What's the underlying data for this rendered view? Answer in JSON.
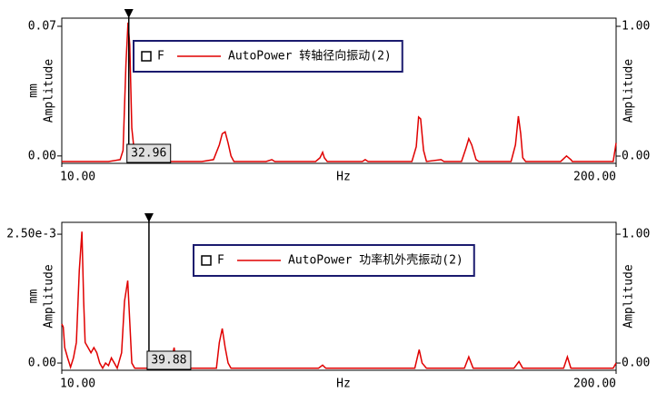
{
  "chart_data": [
    {
      "type": "line",
      "xlabel": "Hz",
      "ylabel": "Amplitude",
      "yunit": "mm",
      "y2label": "Amplitude",
      "legend_label": "F",
      "xlim": [
        10,
        200
      ],
      "xticks": [
        {
          "value": 10,
          "label": "10.00"
        },
        {
          "value": 200,
          "label": "200.00"
        }
      ],
      "ylim": [
        -0.004,
        0.0744
      ],
      "yticks": [
        {
          "value": 0,
          "label": "0.00"
        },
        0.07
      ],
      "y2lim": [
        -0.056,
        1.063
      ],
      "y2ticks": [
        {
          "value": 0,
          "label": "0.00"
        },
        {
          "value": 1,
          "label": "1.00"
        }
      ],
      "cursor": 32.96,
      "x": [
        10,
        20,
        26,
        30,
        31,
        32,
        32.7,
        33.3,
        34,
        35,
        36,
        40,
        42,
        43,
        58,
        62,
        64,
        65,
        66,
        67,
        68,
        69,
        80,
        82,
        83,
        97,
        98.5,
        99.4,
        100,
        101,
        113,
        114,
        115,
        130,
        131.5,
        132.3,
        133,
        134,
        135,
        140,
        141,
        147,
        148.5,
        149.5,
        150.5,
        152,
        153,
        164,
        165.5,
        166.5,
        167.3,
        168,
        169,
        181,
        183,
        184.5,
        185,
        199,
        200
      ],
      "series": [
        {
          "name": "AutoPower 转轴径向振动(2)",
          "color": "#e00000",
          "values": [
            -0.003,
            -0.003,
            -0.003,
            -0.002,
            0.003,
            0.05,
            0.072,
            0.06,
            0.015,
            0.0,
            -0.003,
            -0.003,
            -0.002,
            -0.003,
            -0.003,
            -0.002,
            0.006,
            0.012,
            0.013,
            0.007,
            0.0,
            -0.003,
            -0.003,
            -0.002,
            -0.003,
            -0.003,
            -0.001,
            0.002,
            -0.001,
            -0.003,
            -0.003,
            -0.002,
            -0.003,
            -0.003,
            0.005,
            0.021,
            0.02,
            0.003,
            -0.003,
            -0.002,
            -0.003,
            -0.003,
            0.004,
            0.0093,
            0.006,
            -0.002,
            -0.003,
            -0.003,
            0.006,
            0.0215,
            0.012,
            -0.001,
            -0.003,
            -0.003,
            0.0,
            -0.002,
            -0.003,
            -0.003,
            0.007
          ]
        }
      ]
    },
    {
      "type": "line",
      "xlabel": "Hz",
      "ylabel": "Amplitude",
      "yunit": "mm",
      "y2label": "Amplitude",
      "legend_label": "F",
      "xlim": [
        10,
        200
      ],
      "xticks": [
        {
          "value": 10,
          "label": "10.00"
        },
        {
          "value": 200,
          "label": "200.00"
        }
      ],
      "ylim": [
        -0.00014,
        0.00273
      ],
      "yticks": [
        {
          "value": 0,
          "label": "0.00"
        },
        {
          "value": 0.0025,
          "label": "2.50e-3"
        }
      ],
      "y2lim": [
        -0.056,
        1.092
      ],
      "y2ticks": [
        {
          "value": 0,
          "label": "0.00"
        },
        {
          "value": 1,
          "label": "1.00"
        }
      ],
      "cursor": 39.88,
      "x": [
        10,
        10.5,
        11,
        12,
        13,
        14,
        15,
        16,
        16.9,
        17.5,
        18,
        19,
        20,
        21,
        22,
        23,
        24,
        25,
        26,
        27,
        29,
        30.5,
        31.5,
        32.6,
        33.3,
        34,
        35,
        47,
        48.5,
        49.5,
        63,
        64,
        65,
        66,
        67,
        68,
        98,
        99.4,
        100.5,
        131,
        132.5,
        133.5,
        135,
        148,
        149.5,
        151,
        165,
        166.7,
        168,
        182,
        183.3,
        184.5,
        199,
        200
      ],
      "series": [
        {
          "name": "AutoPower 功率机外壳振动(2)",
          "color": "#e00000",
          "values": [
            0.00076,
            0.0007,
            0.0003,
            0.0001,
            -8e-05,
            0.0001,
            0.0004,
            0.0018,
            0.00255,
            0.0012,
            0.0004,
            0.0003,
            0.0002,
            0.0003,
            0.0002,
            0.0,
            -0.0001,
            0.0,
            -5e-05,
            0.0001,
            -0.0001,
            0.0002,
            0.0012,
            0.0016,
            0.0008,
            0.0,
            -0.0001,
            -0.0001,
            0.0003,
            -0.0001,
            -0.0001,
            0.0004,
            0.00067,
            0.0003,
            0.0,
            -0.0001,
            -0.0001,
            -4e-05,
            -0.0001,
            -0.0001,
            0.00026,
            0.0,
            -0.0001,
            -0.0001,
            0.00012,
            -0.0001,
            -0.0001,
            3e-05,
            -0.0001,
            -0.0001,
            0.00012,
            -0.0001,
            -0.0001,
            0.0
          ]
        }
      ]
    }
  ]
}
